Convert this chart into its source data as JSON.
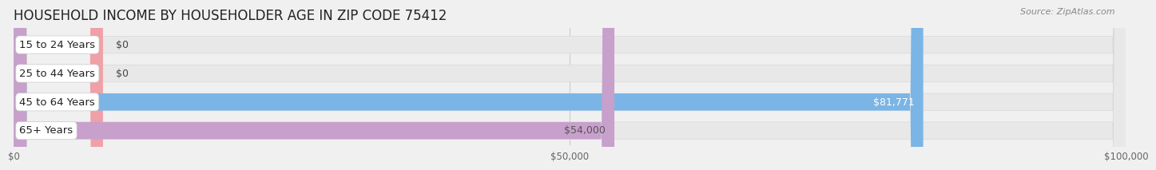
{
  "title": "HOUSEHOLD INCOME BY HOUSEHOLDER AGE IN ZIP CODE 75412",
  "source": "Source: ZipAtlas.com",
  "categories": [
    "15 to 24 Years",
    "25 to 44 Years",
    "45 to 64 Years",
    "65+ Years"
  ],
  "values": [
    0,
    0,
    81771,
    54000
  ],
  "bar_colors": [
    "#f5c49e",
    "#f0a0a8",
    "#7ab5e5",
    "#c8a0cc"
  ],
  "value_labels": [
    "$0",
    "$0",
    "$81,771",
    "$54,000"
  ],
  "value_label_colors": [
    "#555555",
    "#555555",
    "#ffffff",
    "#555555"
  ],
  "xlim": [
    0,
    100000
  ],
  "xtick_values": [
    0,
    50000,
    100000
  ],
  "xtick_labels": [
    "$0",
    "$50,000",
    "$100,000"
  ],
  "background_color": "#f0f0f0",
  "bar_bg_color": "#e8e8e8",
  "bar_bg_border_color": "#d8d8d8",
  "title_fontsize": 12,
  "label_fontsize": 9.5,
  "value_fontsize": 9,
  "bar_height": 0.6,
  "bar_gap": 0.15,
  "zero_bar_width": 8000
}
